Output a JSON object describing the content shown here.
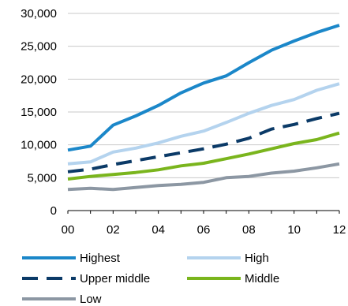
{
  "chart_data": {
    "type": "line",
    "title": "",
    "xlabel": "",
    "ylabel": "",
    "x": [
      "00",
      "01",
      "02",
      "03",
      "04",
      "05",
      "06",
      "07",
      "08",
      "09",
      "10",
      "11",
      "12"
    ],
    "x_tick_labels": [
      "00",
      "02",
      "04",
      "06",
      "08",
      "10",
      "12"
    ],
    "y_tick_labels": [
      "0",
      "5,000",
      "10,000",
      "15,000",
      "20,000",
      "25,000",
      "30,000"
    ],
    "ylim": [
      0,
      30000
    ],
    "grid": "horizontal",
    "legend_position": "bottom",
    "series": [
      {
        "name": "Highest",
        "color": "#1b87c9",
        "dash": "solid",
        "values": [
          9200,
          9800,
          13000,
          14400,
          16000,
          17900,
          19400,
          20500,
          22500,
          24400,
          25800,
          27100,
          28200
        ]
      },
      {
        "name": "High",
        "color": "#b4d3ee",
        "dash": "solid",
        "values": [
          7100,
          7400,
          8900,
          9500,
          10300,
          11300,
          12100,
          13400,
          14800,
          16000,
          16900,
          18300,
          19300
        ]
      },
      {
        "name": "Upper middle",
        "color": "#0b3a67",
        "dash": "dashed",
        "values": [
          5900,
          6300,
          7000,
          7600,
          8200,
          8800,
          9400,
          10100,
          11000,
          12400,
          13100,
          14000,
          14800
        ]
      },
      {
        "name": "Middle",
        "color": "#7ab51d",
        "dash": "solid",
        "values": [
          4800,
          5200,
          5500,
          5800,
          6200,
          6800,
          7200,
          7900,
          8600,
          9400,
          10200,
          10800,
          11800
        ]
      },
      {
        "name": "Low",
        "color": "#8c97a3",
        "dash": "solid",
        "values": [
          3200,
          3400,
          3200,
          3500,
          3800,
          4000,
          4300,
          5000,
          5200,
          5700,
          6000,
          6500,
          7100
        ]
      }
    ]
  }
}
